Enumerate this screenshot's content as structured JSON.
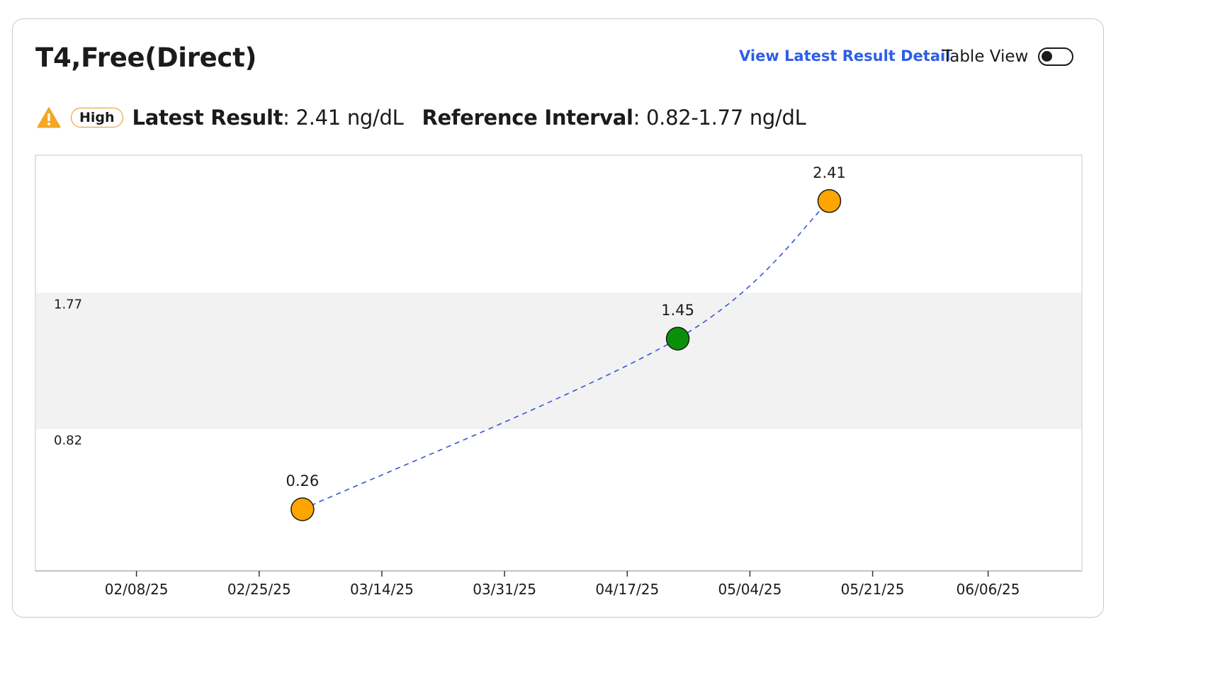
{
  "header": {
    "title": "T4,Free(Direct)",
    "detail_link": "View Latest Result Detail",
    "table_view_label": "Table View",
    "table_view_on": false
  },
  "status": {
    "flag": "High",
    "latest_result_label": "Latest Result",
    "latest_result_value": "2.41 ng/dL",
    "reference_interval_label": "Reference Interval",
    "reference_interval_value": "0.82-1.77 ng/dL"
  },
  "colors": {
    "accent_link": "#2e5ee6",
    "warning": "#f5a623",
    "high_point": "#ffa500",
    "normal_point": "#0a8f0a",
    "reference_band": "#f2f2f2",
    "trend_line": "#3556d8"
  },
  "icons": {
    "status_icon": "warning-triangle-icon"
  },
  "chart_data": {
    "type": "scatter",
    "title": "",
    "xlabel": "",
    "ylabel": "",
    "unit": "ng/dL",
    "x_ticks": [
      "02/08/25",
      "02/25/25",
      "03/14/25",
      "03/31/25",
      "04/17/25",
      "05/04/25",
      "05/21/25",
      "06/06/25"
    ],
    "x_range": [
      "2025-01-25",
      "2025-06-19"
    ],
    "y_range": [
      -0.17,
      2.73
    ],
    "reference_interval": {
      "low": 0.82,
      "high": 1.77,
      "low_label": "0.82",
      "high_label": "1.77"
    },
    "points": [
      {
        "date": "2025-03-03",
        "value": 0.26,
        "label": "0.26",
        "status": "out-of-range"
      },
      {
        "date": "2025-04-24",
        "value": 1.45,
        "label": "1.45",
        "status": "normal"
      },
      {
        "date": "2025-05-15",
        "value": 2.41,
        "label": "2.41",
        "status": "out-of-range"
      }
    ],
    "trend_line": "dashed",
    "grid": false,
    "legend": "none"
  }
}
